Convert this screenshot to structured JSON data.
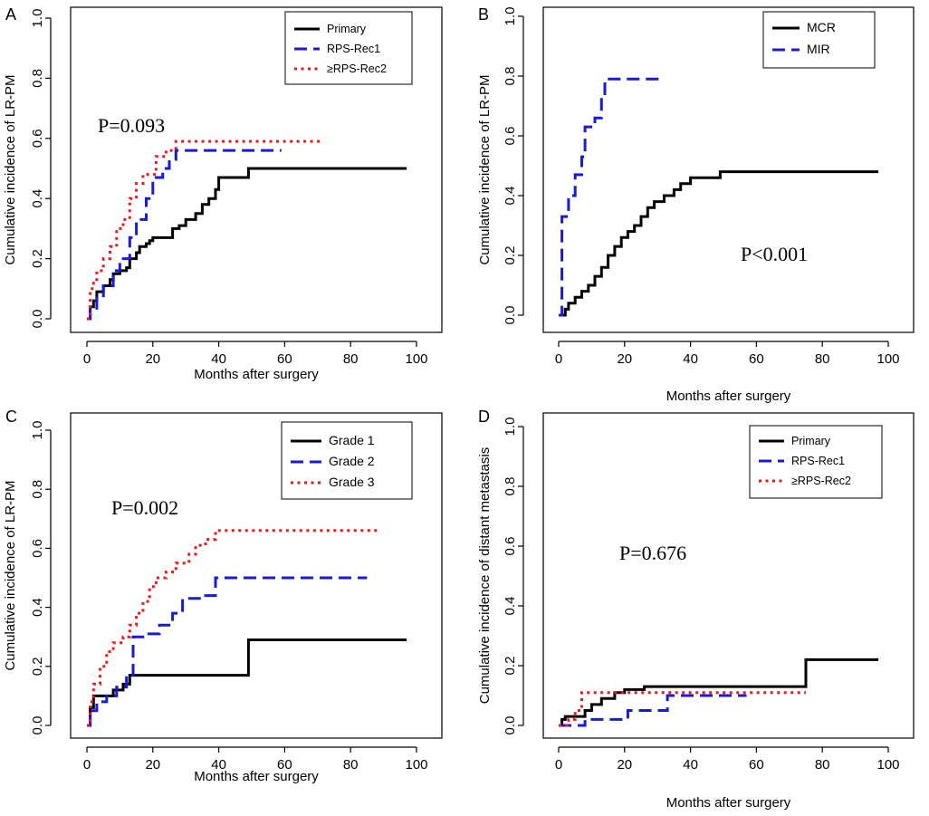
{
  "figure": {
    "xlabel": "Months after surgery",
    "colors": {
      "black": "#000000",
      "blue": "#1a1ad8",
      "red": "#e8191c"
    }
  },
  "chart_data": [
    {
      "panel": "A",
      "type": "line",
      "title": "",
      "xlabel": "Months after surgery",
      "ylabel": "Cumulative incidence of LR-PM",
      "xlim": [
        0,
        100
      ],
      "ylim": [
        0,
        1.0
      ],
      "xticks": [
        "0",
        "20",
        "40",
        "60",
        "80",
        "100"
      ],
      "yticks": [
        "0.0",
        "0.2",
        "0.4",
        "0.6",
        "0.8",
        "1.0"
      ],
      "annotation": "P=0.093",
      "legend_position": "top-right",
      "series": [
        {
          "name": "Primary",
          "style": "solid",
          "color": "#000000",
          "points": [
            [
              0,
              0
            ],
            [
              1,
              0.04
            ],
            [
              2,
              0.06
            ],
            [
              3,
              0.09
            ],
            [
              5,
              0.11
            ],
            [
              7,
              0.13
            ],
            [
              8,
              0.15
            ],
            [
              10,
              0.16
            ],
            [
              12,
              0.17
            ],
            [
              13,
              0.2
            ],
            [
              15,
              0.22
            ],
            [
              16,
              0.24
            ],
            [
              18,
              0.25
            ],
            [
              19,
              0.26
            ],
            [
              20,
              0.27
            ],
            [
              25,
              0.27
            ],
            [
              26,
              0.3
            ],
            [
              28,
              0.31
            ],
            [
              30,
              0.33
            ],
            [
              33,
              0.35
            ],
            [
              35,
              0.38
            ],
            [
              37,
              0.4
            ],
            [
              39,
              0.43
            ],
            [
              40,
              0.47
            ],
            [
              49,
              0.47
            ],
            [
              49,
              0.5
            ],
            [
              97,
              0.5
            ]
          ]
        },
        {
          "name": "RPS-Rec1",
          "style": "dashed",
          "color": "#1a1ad8",
          "points": [
            [
              0,
              0
            ],
            [
              1,
              0.03
            ],
            [
              3,
              0.07
            ],
            [
              5,
              0.11
            ],
            [
              8,
              0.16
            ],
            [
              10,
              0.2
            ],
            [
              13,
              0.27
            ],
            [
              15,
              0.33
            ],
            [
              18,
              0.4
            ],
            [
              20,
              0.47
            ],
            [
              23,
              0.5
            ],
            [
              25,
              0.53
            ],
            [
              27,
              0.56
            ],
            [
              59,
              0.56
            ]
          ]
        },
        {
          "name": "≥RPS-Rec2",
          "style": "dotted",
          "color": "#e8191c",
          "points": [
            [
              0,
              0
            ],
            [
              1,
              0.1
            ],
            [
              2,
              0.13
            ],
            [
              3,
              0.16
            ],
            [
              5,
              0.2
            ],
            [
              7,
              0.24
            ],
            [
              9,
              0.3
            ],
            [
              11,
              0.33
            ],
            [
              13,
              0.4
            ],
            [
              15,
              0.45
            ],
            [
              17,
              0.48
            ],
            [
              21,
              0.54
            ],
            [
              24,
              0.56
            ],
            [
              27,
              0.59
            ],
            [
              71,
              0.59
            ]
          ]
        }
      ]
    },
    {
      "panel": "B",
      "type": "line",
      "title": "",
      "xlabel": "Months after surgery",
      "ylabel": "Cumulative incidence of LR-PM",
      "xlim": [
        0,
        100
      ],
      "ylim": [
        0,
        1.0
      ],
      "xticks": [
        "0",
        "20",
        "40",
        "60",
        "80",
        "100"
      ],
      "yticks": [
        "0.0",
        "0.2",
        "0.4",
        "0.6",
        "0.8",
        "1.0"
      ],
      "annotation": "P<0.001",
      "legend_position": "top-right",
      "series": [
        {
          "name": "MCR",
          "style": "solid",
          "color": "#000000",
          "points": [
            [
              0,
              0
            ],
            [
              2,
              0.02
            ],
            [
              3,
              0.04
            ],
            [
              5,
              0.06
            ],
            [
              7,
              0.08
            ],
            [
              9,
              0.1
            ],
            [
              11,
              0.13
            ],
            [
              13,
              0.16
            ],
            [
              15,
              0.2
            ],
            [
              17,
              0.23
            ],
            [
              19,
              0.26
            ],
            [
              21,
              0.28
            ],
            [
              23,
              0.3
            ],
            [
              25,
              0.33
            ],
            [
              27,
              0.36
            ],
            [
              29,
              0.38
            ],
            [
              32,
              0.4
            ],
            [
              35,
              0.42
            ],
            [
              37,
              0.44
            ],
            [
              40,
              0.46
            ],
            [
              49,
              0.46
            ],
            [
              49,
              0.48
            ],
            [
              97,
              0.48
            ]
          ]
        },
        {
          "name": "MIR",
          "style": "dashed",
          "color": "#1a1ad8",
          "points": [
            [
              0,
              0
            ],
            [
              1,
              0.33
            ],
            [
              3,
              0.4
            ],
            [
              5,
              0.47
            ],
            [
              7,
              0.53
            ],
            [
              8,
              0.63
            ],
            [
              11,
              0.66
            ],
            [
              13,
              0.73
            ],
            [
              14,
              0.79
            ],
            [
              31,
              0.79
            ]
          ]
        }
      ]
    },
    {
      "panel": "C",
      "type": "line",
      "title": "",
      "xlabel": "Months after surgery",
      "ylabel": "Cumulative incidence of LR-PM",
      "xlim": [
        0,
        100
      ],
      "ylim": [
        0,
        1.0
      ],
      "xticks": [
        "0",
        "20",
        "40",
        "60",
        "80",
        "100"
      ],
      "yticks": [
        "0.0",
        "0.2",
        "0.4",
        "0.6",
        "0.8",
        "1.0"
      ],
      "annotation": "P=0.002",
      "legend_position": "top-right",
      "series": [
        {
          "name": "Grade 1",
          "style": "solid",
          "color": "#000000",
          "points": [
            [
              0,
              0
            ],
            [
              1,
              0.06
            ],
            [
              2,
              0.1
            ],
            [
              7,
              0.1
            ],
            [
              8,
              0.12
            ],
            [
              11,
              0.14
            ],
            [
              13,
              0.17
            ],
            [
              49,
              0.17
            ],
            [
              49,
              0.29
            ],
            [
              97,
              0.29
            ]
          ]
        },
        {
          "name": "Grade 2",
          "style": "dashed",
          "color": "#1a1ad8",
          "points": [
            [
              0,
              0
            ],
            [
              1,
              0.05
            ],
            [
              3,
              0.08
            ],
            [
              6,
              0.1
            ],
            [
              9,
              0.13
            ],
            [
              12,
              0.17
            ],
            [
              14,
              0.3
            ],
            [
              18,
              0.31
            ],
            [
              22,
              0.34
            ],
            [
              26,
              0.38
            ],
            [
              29,
              0.43
            ],
            [
              35,
              0.44
            ],
            [
              39,
              0.5
            ],
            [
              85,
              0.5
            ]
          ]
        },
        {
          "name": "Grade 3",
          "style": "dotted",
          "color": "#e8191c",
          "points": [
            [
              0,
              0
            ],
            [
              1,
              0.08
            ],
            [
              2,
              0.14
            ],
            [
              4,
              0.2
            ],
            [
              6,
              0.25
            ],
            [
              8,
              0.28
            ],
            [
              11,
              0.3
            ],
            [
              13,
              0.34
            ],
            [
              15,
              0.38
            ],
            [
              17,
              0.42
            ],
            [
              19,
              0.47
            ],
            [
              21,
              0.5
            ],
            [
              24,
              0.52
            ],
            [
              27,
              0.55
            ],
            [
              31,
              0.58
            ],
            [
              33,
              0.61
            ],
            [
              36,
              0.63
            ],
            [
              39,
              0.66
            ],
            [
              89,
              0.66
            ]
          ]
        }
      ]
    },
    {
      "panel": "D",
      "type": "line",
      "title": "",
      "xlabel": "Months after surgery",
      "ylabel": "Cumulative incidence of distant metastasis",
      "xlim": [
        0,
        100
      ],
      "ylim": [
        0,
        1.0
      ],
      "xticks": [
        "0",
        "20",
        "40",
        "60",
        "80",
        "100"
      ],
      "yticks": [
        "0.0",
        "0.2",
        "0.4",
        "0.6",
        "0.8",
        "1.0"
      ],
      "annotation": "P=0.676",
      "legend_position": "top-right",
      "series": [
        {
          "name": "Primary",
          "style": "solid",
          "color": "#000000",
          "points": [
            [
              0,
              0
            ],
            [
              1,
              0.02
            ],
            [
              2,
              0.03
            ],
            [
              7,
              0.03
            ],
            [
              8,
              0.05
            ],
            [
              10,
              0.07
            ],
            [
              13,
              0.09
            ],
            [
              17,
              0.11
            ],
            [
              20,
              0.12
            ],
            [
              26,
              0.13
            ],
            [
              75,
              0.13
            ],
            [
              75,
              0.22
            ],
            [
              97,
              0.22
            ]
          ]
        },
        {
          "name": "RPS-Rec1",
          "style": "dashed",
          "color": "#1a1ad8",
          "points": [
            [
              0,
              0
            ],
            [
              8,
              0
            ],
            [
              8,
              0.02
            ],
            [
              21,
              0.02
            ],
            [
              21,
              0.05
            ],
            [
              33,
              0.05
            ],
            [
              33,
              0.1
            ],
            [
              57,
              0.1
            ]
          ]
        },
        {
          "name": "≥RPS-Rec2",
          "style": "dotted",
          "color": "#e8191c",
          "points": [
            [
              0,
              0
            ],
            [
              3,
              0.02
            ],
            [
              5,
              0.05
            ],
            [
              7,
              0.11
            ],
            [
              75,
              0.11
            ]
          ]
        }
      ]
    }
  ]
}
